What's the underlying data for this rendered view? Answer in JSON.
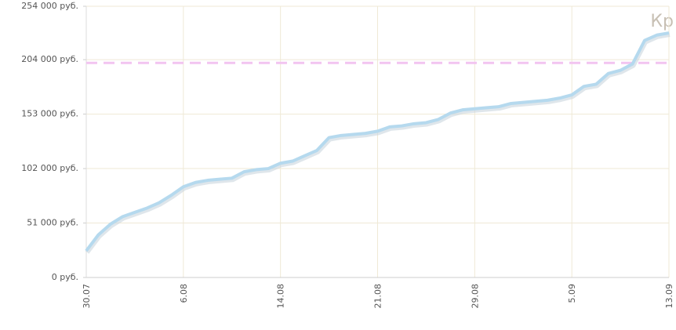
{
  "chart_data": {
    "type": "line",
    "annotation": "Кр",
    "categories": [
      "30.07",
      null,
      null,
      null,
      null,
      null,
      null,
      null,
      "6.08",
      null,
      null,
      null,
      null,
      null,
      null,
      null,
      "14.08",
      null,
      null,
      null,
      null,
      null,
      null,
      null,
      "21.08",
      null,
      null,
      null,
      null,
      null,
      null,
      null,
      "29.08",
      null,
      null,
      null,
      null,
      null,
      null,
      null,
      "5.09",
      null,
      null,
      null,
      null,
      null,
      null,
      null,
      "13.09"
    ],
    "series": [
      {
        "color": "#b5d9ee",
        "values": [
          25000,
          40000,
          50000,
          57000,
          61000,
          65000,
          70000,
          77000,
          85000,
          89000,
          91000,
          92000,
          93000,
          99000,
          101000,
          102000,
          107000,
          109000,
          114000,
          119000,
          131000,
          133000,
          134000,
          135000,
          137000,
          141000,
          142000,
          144000,
          145000,
          148000,
          154000,
          157000,
          158000,
          159000,
          160000,
          163000,
          164000,
          165000,
          166000,
          168000,
          171000,
          179000,
          181000,
          191000,
          194000,
          200000,
          222000,
          227000,
          229000
        ]
      }
    ],
    "reference_line": {
      "value": 201000,
      "color": "#f2c4f0"
    },
    "ylim": [
      0,
      254000
    ],
    "yticks": [
      {
        "value": 0,
        "label": "0 руб."
      },
      {
        "value": 51000,
        "label": "51 000 руб."
      },
      {
        "value": 102000,
        "label": "102 000 руб."
      },
      {
        "value": 153000,
        "label": "153 000 руб."
      },
      {
        "value": 204000,
        "label": "204 000 руб."
      },
      {
        "value": 254000,
        "label": "254 000 руб."
      }
    ],
    "grid": true
  }
}
